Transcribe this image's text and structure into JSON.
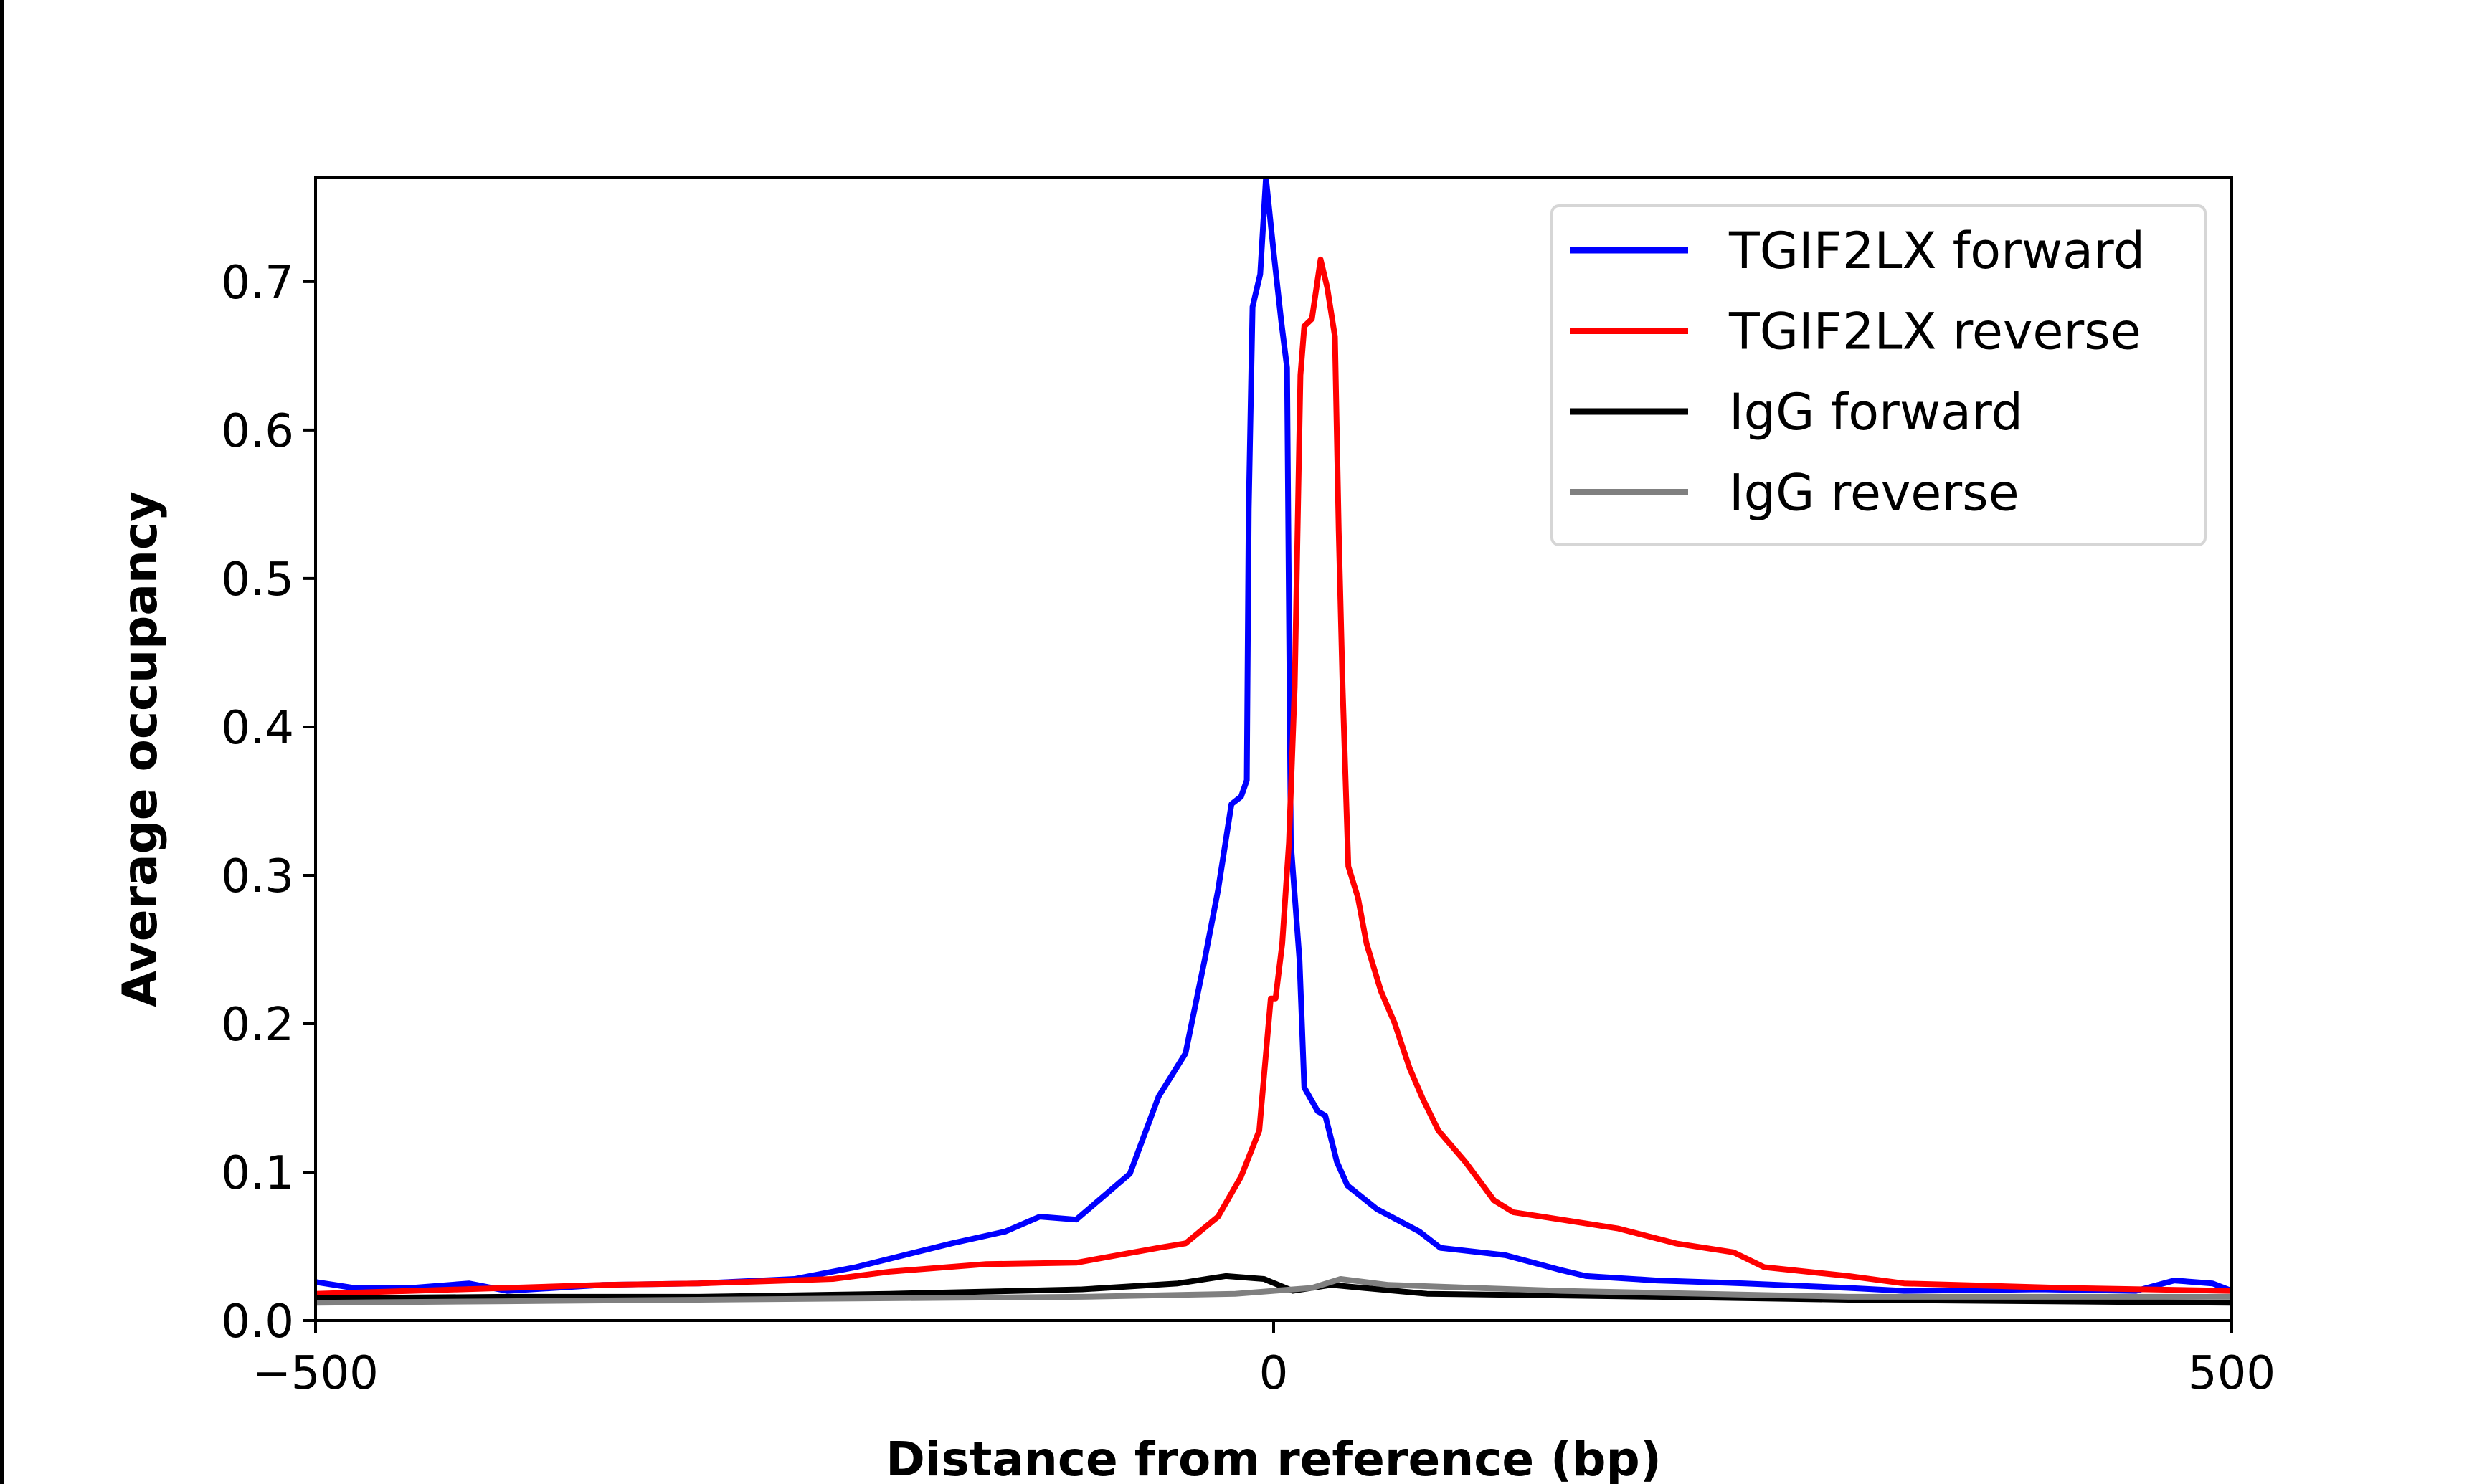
{
  "chart_data": {
    "type": "line",
    "title": "",
    "xlabel": "Distance from reference (bp)",
    "ylabel": "Average occupancy",
    "xlim": [
      -500,
      500
    ],
    "ylim": [
      0,
      0.77
    ],
    "xticks": [
      -500,
      0,
      500
    ],
    "xtick_labels": [
      "−500",
      "0",
      "500"
    ],
    "yticks": [
      0.0,
      0.1,
      0.2,
      0.3,
      0.4,
      0.5,
      0.6,
      0.7
    ],
    "ytick_labels": [
      "0.0",
      "0.1",
      "0.2",
      "0.3",
      "0.4",
      "0.5",
      "0.6",
      "0.7"
    ],
    "grid": false,
    "legend_position": "top-right",
    "series": [
      {
        "name": "TGIF2LX forward",
        "color": "#0000ff",
        "x": [
          -500,
          -480,
          -450,
          -420,
          -400,
          -350,
          -300,
          -250,
          -218,
          -168,
          -140,
          -122,
          -103,
          -75,
          -60,
          -46,
          -36,
          -29,
          -22,
          -17,
          -14,
          -13,
          -11,
          -7,
          -4,
          0,
          4,
          7,
          9,
          13.5,
          16,
          23,
          27,
          33,
          38.5,
          54,
          76,
          87,
          121,
          150,
          163,
          200,
          246,
          300,
          329,
          400,
          450,
          470,
          490,
          500
        ],
        "y": [
          0.026,
          0.022,
          0.022,
          0.025,
          0.02,
          0.024,
          0.025,
          0.028,
          0.036,
          0.052,
          0.06,
          0.07,
          0.068,
          0.099,
          0.151,
          0.18,
          0.243,
          0.29,
          0.348,
          0.353,
          0.364,
          0.547,
          0.683,
          0.705,
          0.77,
          0.72,
          0.673,
          0.642,
          0.322,
          0.243,
          0.157,
          0.141,
          0.138,
          0.107,
          0.091,
          0.075,
          0.06,
          0.049,
          0.044,
          0.034,
          0.03,
          0.027,
          0.025,
          0.022,
          0.02,
          0.021,
          0.02,
          0.027,
          0.025,
          0.02
        ]
      },
      {
        "name": "TGIF2LX reverse",
        "color": "#ff0000",
        "x": [
          -500,
          -450,
          -400,
          -350,
          -300,
          -230,
          -200,
          -150,
          -103,
          -60,
          -46,
          -29,
          -17,
          -7.5,
          -1.5,
          1,
          4.5,
          8,
          11,
          14,
          16,
          20,
          24.5,
          28,
          32,
          34,
          36,
          39,
          44,
          48.5,
          56,
          63,
          71,
          78,
          86,
          100,
          115,
          125,
          150,
          180,
          210,
          240,
          256,
          300,
          329,
          412,
          500
        ],
        "y": [
          0.018,
          0.02,
          0.022,
          0.024,
          0.025,
          0.028,
          0.033,
          0.038,
          0.039,
          0.049,
          0.052,
          0.07,
          0.097,
          0.128,
          0.217,
          0.217,
          0.254,
          0.322,
          0.427,
          0.637,
          0.67,
          0.675,
          0.715,
          0.696,
          0.663,
          0.532,
          0.427,
          0.306,
          0.285,
          0.254,
          0.222,
          0.201,
          0.17,
          0.149,
          0.128,
          0.107,
          0.081,
          0.073,
          0.068,
          0.062,
          0.052,
          0.046,
          0.036,
          0.03,
          0.025,
          0.022,
          0.02
        ]
      },
      {
        "name": "IgG forward",
        "color": "#000000",
        "x": [
          -500,
          -400,
          -300,
          -200,
          -100,
          -50,
          -25,
          -5,
          10,
          30,
          80,
          200,
          300,
          400,
          500
        ],
        "y": [
          0.015,
          0.016,
          0.016,
          0.018,
          0.021,
          0.025,
          0.03,
          0.028,
          0.02,
          0.024,
          0.018,
          0.016,
          0.014,
          0.013,
          0.012
        ]
      },
      {
        "name": "IgG reverse",
        "color": "#808080",
        "x": [
          -500,
          -400,
          -300,
          -200,
          -100,
          -20,
          0,
          20,
          35,
          60,
          150,
          300,
          400,
          500
        ],
        "y": [
          0.012,
          0.013,
          0.014,
          0.015,
          0.016,
          0.018,
          0.02,
          0.022,
          0.028,
          0.024,
          0.02,
          0.016,
          0.016,
          0.016
        ]
      }
    ]
  }
}
